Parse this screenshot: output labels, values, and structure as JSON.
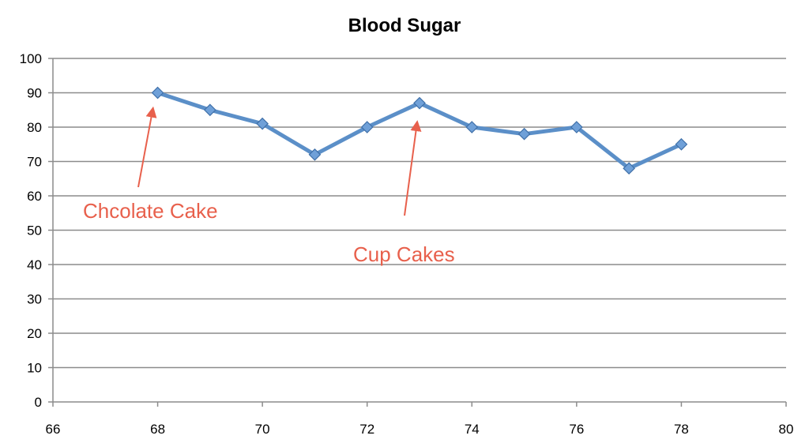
{
  "chart_data": {
    "type": "scatter",
    "title": "Blood Sugar",
    "xlabel": "",
    "ylabel": "",
    "xlim": [
      66,
      80
    ],
    "ylim": [
      0,
      100
    ],
    "xticks": [
      66,
      68,
      70,
      72,
      74,
      76,
      78,
      80
    ],
    "yticks": [
      0,
      10,
      20,
      30,
      40,
      50,
      60,
      70,
      80,
      90,
      100
    ],
    "grid": "horizontal",
    "legend": "none",
    "series": [
      {
        "color": "#5B8FC8",
        "marker": "diamond",
        "line": true,
        "x": [
          68,
          69,
          70,
          71,
          72,
          73,
          74,
          75,
          76,
          77,
          78
        ],
        "y": [
          90,
          85,
          81,
          72,
          80,
          87,
          80,
          78,
          80,
          68,
          75
        ]
      }
    ],
    "annotations": [
      {
        "text": "Chcolate Cake",
        "arrow_to": [
          68,
          90
        ],
        "color": "#E8604C"
      },
      {
        "text": "Cup Cakes",
        "arrow_to": [
          73,
          86
        ],
        "color": "#E8604C"
      }
    ]
  }
}
